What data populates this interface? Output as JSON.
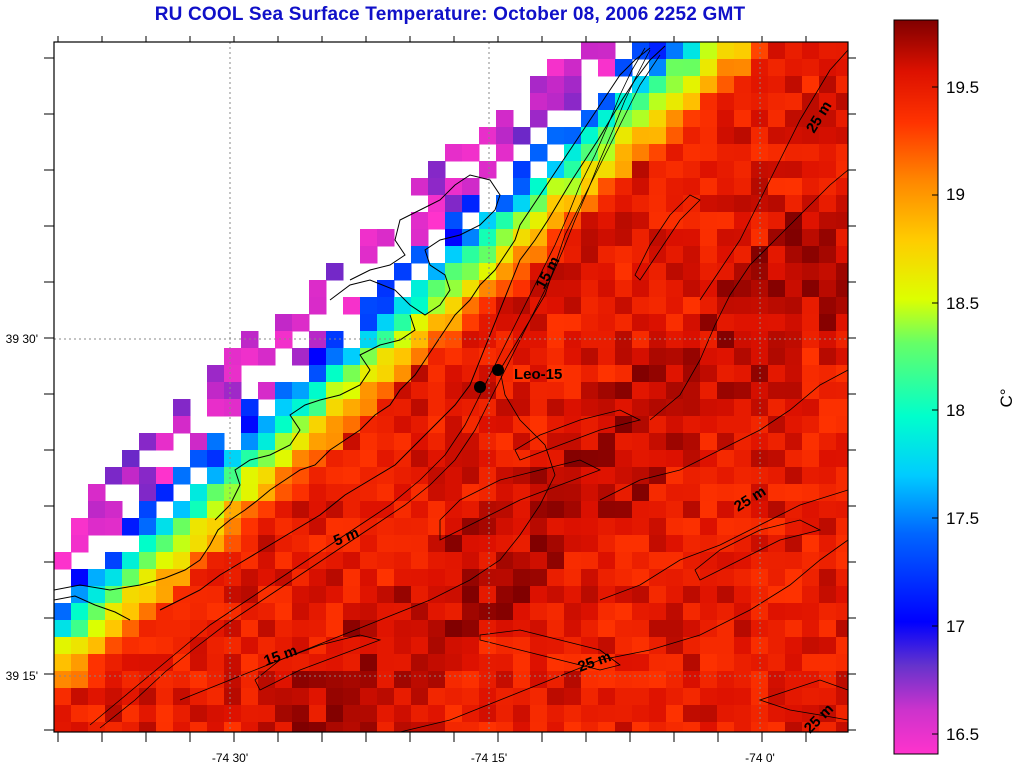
{
  "title": "RU COOL  Sea Surface Temperature:  October 08, 2006 2252 GMT",
  "map": {
    "lon_labels": [
      "-74 30'",
      "-74 15'",
      "-74 0'"
    ],
    "lat_labels": [
      "39 30'",
      "39 15'"
    ],
    "contour_labels": [
      "25 m",
      "15 m",
      "5 m",
      "15 m",
      "25 m",
      "25 m",
      "25 m"
    ],
    "station": {
      "label": "Leo-15"
    }
  },
  "colorbar": {
    "unit": "C°",
    "ticks": [
      "19.5",
      "19",
      "18.5",
      "18",
      "17.5",
      "17",
      "16.5"
    ],
    "range": [
      16.4,
      19.8
    ],
    "colors": [
      "#ff33cc",
      "#9933cc",
      "#0000ff",
      "#00aaff",
      "#00ffee",
      "#99ff33",
      "#ffff00",
      "#ffaa00",
      "#ff4400",
      "#dd0000",
      "#800000"
    ]
  }
}
